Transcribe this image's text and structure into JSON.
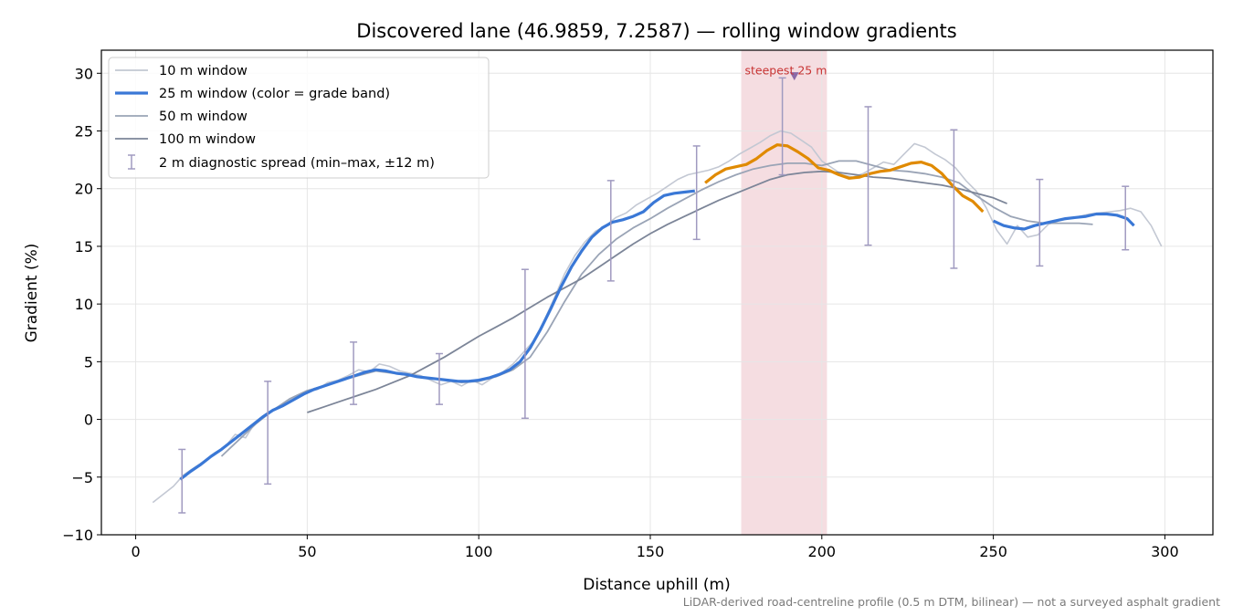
{
  "chart_data": {
    "type": "line",
    "title": "Discovered lane (46.9859, 7.2587) — rolling window gradients",
    "xlabel": "Distance uphill (m)",
    "ylabel": "Gradient (%)",
    "footnote": "LiDAR-derived road-centreline profile (0.5 m DTM, bilinear) — not a surveyed asphalt gradient",
    "xlim": [
      -10,
      314
    ],
    "ylim": [
      -10,
      32
    ],
    "x_ticks": [
      0,
      50,
      100,
      150,
      200,
      250,
      300
    ],
    "y_ticks": [
      -10,
      -5,
      0,
      5,
      10,
      15,
      20,
      25,
      30
    ],
    "grid": true,
    "legend_position": "top-left",
    "colors": {
      "w10": "#c3c8d3",
      "w25": "#3a78d6",
      "w25_steep_band": "#e08a00",
      "w50": "#9aa4b6",
      "w100": "#7c8598",
      "error_bar": "#a09ac0",
      "steepest_shade": "#f1cfd4",
      "annotation": "#c83232"
    },
    "series": [
      {
        "name": "10 m window",
        "x": [
          5,
          8,
          11,
          14,
          17,
          20,
          23,
          26,
          29,
          32,
          35,
          38,
          41,
          44,
          47,
          50,
          53,
          56,
          59,
          62,
          65,
          68,
          71,
          74,
          77,
          80,
          83,
          86,
          89,
          92,
          95,
          98,
          101,
          104,
          107,
          110,
          113,
          116,
          119,
          122,
          125,
          128,
          131,
          134,
          137,
          140,
          143,
          146,
          149,
          152,
          155,
          158,
          161,
          164,
          167,
          170,
          173,
          176,
          179,
          182,
          185,
          188,
          191,
          194,
          197,
          200,
          203,
          206,
          209,
          212,
          215,
          218,
          221,
          224,
          227,
          230,
          233,
          236,
          239,
          242,
          245,
          248,
          251,
          254,
          257,
          260,
          263,
          266,
          269,
          272,
          275,
          278,
          281,
          284,
          287,
          290,
          293,
          296,
          299
        ],
        "y": [
          -7.2,
          -6.5,
          -5.8,
          -4.8,
          -4.2,
          -3.6,
          -2.9,
          -2.4,
          -1.3,
          -1.6,
          -0.2,
          0.5,
          1.0,
          1.5,
          2.0,
          2.4,
          2.6,
          3.2,
          3.4,
          3.8,
          4.3,
          4.1,
          4.8,
          4.6,
          4.2,
          4.0,
          3.8,
          3.4,
          3.0,
          3.3,
          2.9,
          3.4,
          3.0,
          3.6,
          4.1,
          4.8,
          5.8,
          6.8,
          8.5,
          10.5,
          12.6,
          14.2,
          15.4,
          16.3,
          16.8,
          17.5,
          17.9,
          18.6,
          19.1,
          19.6,
          20.2,
          20.8,
          21.2,
          21.4,
          21.6,
          21.9,
          22.4,
          23.0,
          23.5,
          24.0,
          24.6,
          25.0,
          24.8,
          24.2,
          23.6,
          22.4,
          21.8,
          21.2,
          21.0,
          21.3,
          21.8,
          22.3,
          22.1,
          23.0,
          23.9,
          23.6,
          23.0,
          22.5,
          21.8,
          20.7,
          19.8,
          18.3,
          16.4,
          15.2,
          16.8,
          15.8,
          16.0,
          16.9,
          17.2,
          17.4,
          17.6,
          17.8,
          17.9,
          18.0,
          18.1,
          18.3,
          18.0,
          16.8,
          15.0
        ]
      },
      {
        "name": "25 m window (color = grade band)",
        "x": [
          13,
          16,
          19,
          22,
          25,
          28,
          31,
          34,
          37,
          40,
          43,
          46,
          49,
          52,
          55,
          58,
          61,
          64,
          67,
          70,
          73,
          76,
          79,
          82,
          85,
          88,
          91,
          94,
          97,
          100,
          103,
          106,
          109,
          112,
          115,
          118,
          121,
          124,
          127,
          130,
          133,
          136,
          139,
          142,
          145,
          148,
          151,
          154,
          157,
          160,
          163,
          166,
          169,
          172,
          175,
          178,
          181,
          184,
          187,
          190,
          193,
          196,
          199,
          202,
          205,
          208,
          211,
          214,
          217,
          220,
          223,
          226,
          229,
          232,
          235,
          238,
          241,
          244,
          247,
          250,
          253,
          256,
          259,
          262,
          265,
          268,
          271,
          274,
          277,
          280,
          283,
          286,
          289,
          291
        ],
        "y": [
          -5.2,
          -4.5,
          -3.9,
          -3.2,
          -2.6,
          -1.9,
          -1.2,
          -0.5,
          0.2,
          0.8,
          1.2,
          1.7,
          2.2,
          2.6,
          2.9,
          3.2,
          3.5,
          3.8,
          4.1,
          4.3,
          4.2,
          4.0,
          3.9,
          3.7,
          3.6,
          3.5,
          3.4,
          3.3,
          3.3,
          3.4,
          3.6,
          3.9,
          4.3,
          5.0,
          6.2,
          7.8,
          9.6,
          11.5,
          13.2,
          14.6,
          15.8,
          16.6,
          17.1,
          17.3,
          17.6,
          18.0,
          18.8,
          19.4,
          19.6,
          19.7,
          19.8,
          20.5,
          21.2,
          21.7,
          21.9,
          22.1,
          22.6,
          23.3,
          23.8,
          23.7,
          23.2,
          22.6,
          21.8,
          21.6,
          21.2,
          20.9,
          21.0,
          21.3,
          21.5,
          21.6,
          21.9,
          22.2,
          22.3,
          22.0,
          21.3,
          20.3,
          19.4,
          18.9,
          18.0,
          17.2,
          16.8,
          16.6,
          16.5,
          16.8,
          17.0,
          17.2,
          17.4,
          17.5,
          17.6,
          17.8,
          17.8,
          17.7,
          17.4,
          16.8
        ]
      },
      {
        "name": "50 m window",
        "x": [
          25,
          30,
          35,
          40,
          45,
          50,
          55,
          60,
          65,
          70,
          75,
          80,
          85,
          90,
          95,
          100,
          105,
          110,
          115,
          120,
          125,
          130,
          135,
          140,
          145,
          150,
          155,
          160,
          165,
          170,
          175,
          180,
          185,
          190,
          195,
          200,
          205,
          210,
          215,
          220,
          225,
          230,
          235,
          240,
          245,
          250,
          255,
          260,
          265,
          270,
          275,
          279
        ],
        "y": [
          -3.2,
          -1.8,
          -0.4,
          0.8,
          1.8,
          2.5,
          2.9,
          3.4,
          3.8,
          4.2,
          4.0,
          3.8,
          3.6,
          3.4,
          3.2,
          3.3,
          3.7,
          4.3,
          5.4,
          7.6,
          10.2,
          12.6,
          14.3,
          15.6,
          16.6,
          17.4,
          18.3,
          19.1,
          19.9,
          20.6,
          21.2,
          21.7,
          22.0,
          22.2,
          22.2,
          22.0,
          22.4,
          22.4,
          22.0,
          21.6,
          21.5,
          21.3,
          21.0,
          20.5,
          19.4,
          18.4,
          17.6,
          17.2,
          17.0,
          17.0,
          17.0,
          16.9
        ]
      },
      {
        "name": "100 m window",
        "x": [
          50,
          55,
          60,
          65,
          70,
          75,
          80,
          85,
          90,
          95,
          100,
          105,
          110,
          115,
          120,
          125,
          130,
          135,
          140,
          145,
          150,
          155,
          160,
          165,
          170,
          175,
          180,
          185,
          190,
          195,
          200,
          205,
          210,
          215,
          220,
          225,
          230,
          235,
          240,
          245,
          250,
          254
        ],
        "y": [
          0.6,
          1.1,
          1.6,
          2.1,
          2.6,
          3.2,
          3.8,
          4.6,
          5.4,
          6.3,
          7.2,
          8.0,
          8.8,
          9.7,
          10.6,
          11.4,
          12.2,
          13.2,
          14.2,
          15.2,
          16.1,
          16.9,
          17.6,
          18.3,
          19.0,
          19.6,
          20.2,
          20.8,
          21.2,
          21.4,
          21.5,
          21.4,
          21.2,
          21.0,
          20.9,
          20.7,
          20.5,
          20.3,
          20.0,
          19.6,
          19.2,
          18.7
        ]
      }
    ],
    "steep_band_x_range": [
      164,
      248
    ],
    "error_bars": {
      "name": "2 m diagnostic spread (min–max, ±12 m)",
      "x": [
        13.5,
        38.5,
        63.5,
        88.5,
        113.5,
        138.5,
        163.5,
        188.5,
        213.5,
        238.5,
        263.5,
        288.5
      ],
      "low": [
        -8.1,
        -5.6,
        1.3,
        1.3,
        0.1,
        12.0,
        15.6,
        21.2,
        15.1,
        13.1,
        13.3,
        14.7
      ],
      "high": [
        -2.6,
        3.3,
        6.7,
        5.7,
        13.0,
        20.7,
        23.7,
        29.6,
        27.1,
        25.1,
        20.8,
        20.2
      ]
    },
    "steepest": {
      "label": "steepest 25 m",
      "x_range": [
        176.5,
        201.5
      ],
      "marker": [
        192,
        29.7
      ]
    }
  }
}
